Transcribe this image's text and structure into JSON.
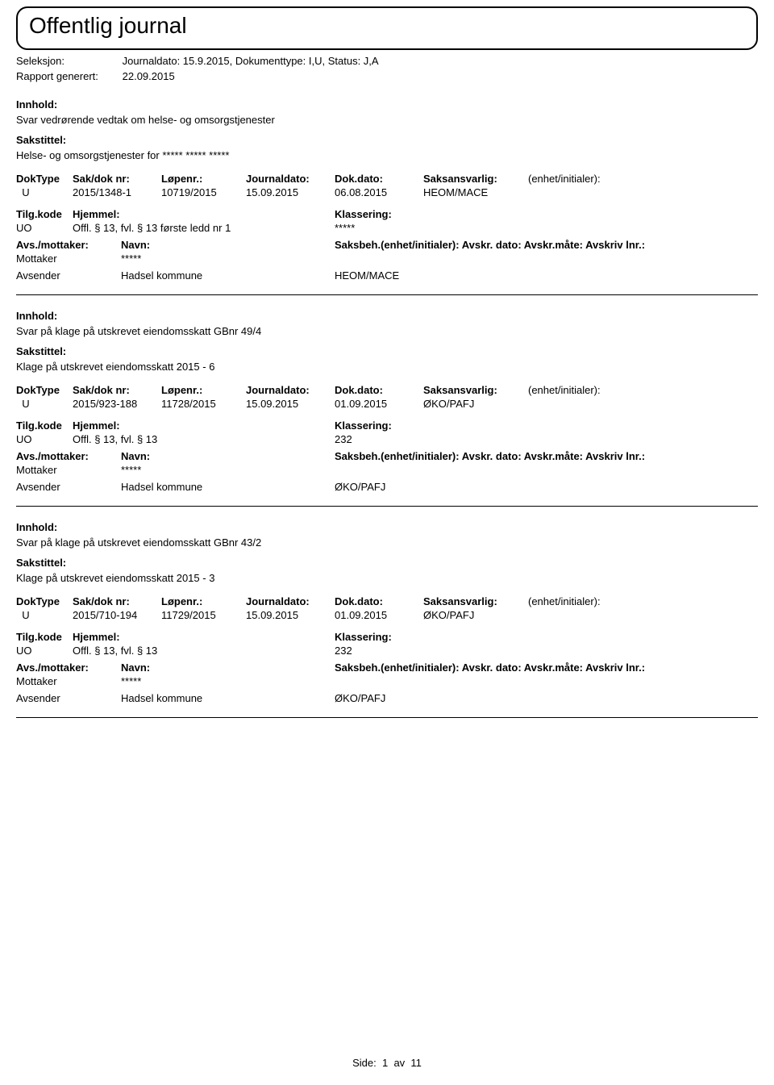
{
  "header": {
    "title": "Offentlig journal",
    "seleksjon_label": "Seleksjon:",
    "seleksjon_value": "Journaldato: 15.9.2015, Dokumenttype: I,U, Status: J,A",
    "rapport_label": "Rapport generert:",
    "rapport_value": "22.09.2015"
  },
  "labels": {
    "innhold": "Innhold:",
    "sakstittel": "Sakstittel:",
    "doktype": "DokType",
    "sakdok": "Sak/dok nr:",
    "lopenr": "Løpenr.:",
    "journaldato": "Journaldato:",
    "dokdato": "Dok.dato:",
    "saksansvarlig": "Saksansvarlig:",
    "enhet": "(enhet/initialer):",
    "tilgkode": "Tilg.kode",
    "hjemmel": "Hjemmel:",
    "klassering": "Klassering:",
    "avsmottaker": "Avs./mottaker:",
    "navn": "Navn:",
    "saksbeh": "Saksbeh.(enhet/initialer): Avskr. dato: Avskr.måte: Avskriv lnr.:",
    "mottaker": "Mottaker",
    "avsender": "Avsender"
  },
  "entries": [
    {
      "innhold": "Svar vedrørende vedtak om helse- og omsorgstjenester",
      "sakstittel": "Helse- og omsorgstjenester for ***** ***** *****",
      "doktype": "U",
      "sakdok": "2015/1348-1",
      "lopenr": "10719/2015",
      "journaldato": "15.09.2015",
      "dokdato": "06.08.2015",
      "saksansvarlig": "HEOM/MACE",
      "tilgkode": "UO",
      "hjemmel": "Offl. § 13, fvl. § 13 første ledd nr 1",
      "klassering": "*****",
      "mottaker_navn": "*****",
      "avsender_navn": "Hadsel kommune",
      "saksbeh_val": "HEOM/MACE"
    },
    {
      "innhold": "Svar på klage på utskrevet eiendomsskatt GBnr 49/4",
      "sakstittel": "Klage på utskrevet eiendomsskatt  2015 - 6",
      "doktype": "U",
      "sakdok": "2015/923-188",
      "lopenr": "11728/2015",
      "journaldato": "15.09.2015",
      "dokdato": "01.09.2015",
      "saksansvarlig": "ØKO/PAFJ",
      "tilgkode": "UO",
      "hjemmel": "Offl. § 13, fvl. § 13",
      "klassering": "232",
      "mottaker_navn": "*****",
      "avsender_navn": "Hadsel kommune",
      "saksbeh_val": "ØKO/PAFJ"
    },
    {
      "innhold": "Svar på klage på utskrevet eiendomsskatt GBnr 43/2",
      "sakstittel": "Klage på utskrevet eiendomsskatt 2015 - 3",
      "doktype": "U",
      "sakdok": "2015/710-194",
      "lopenr": "11729/2015",
      "journaldato": "15.09.2015",
      "dokdato": "01.09.2015",
      "saksansvarlig": "ØKO/PAFJ",
      "tilgkode": "UO",
      "hjemmel": "Offl. § 13, fvl. § 13",
      "klassering": "232",
      "mottaker_navn": "*****",
      "avsender_navn": "Hadsel kommune",
      "saksbeh_val": "ØKO/PAFJ"
    }
  ],
  "footer": {
    "side_label": "Side:",
    "page_current": "1",
    "page_sep": "av",
    "page_total": "11"
  }
}
